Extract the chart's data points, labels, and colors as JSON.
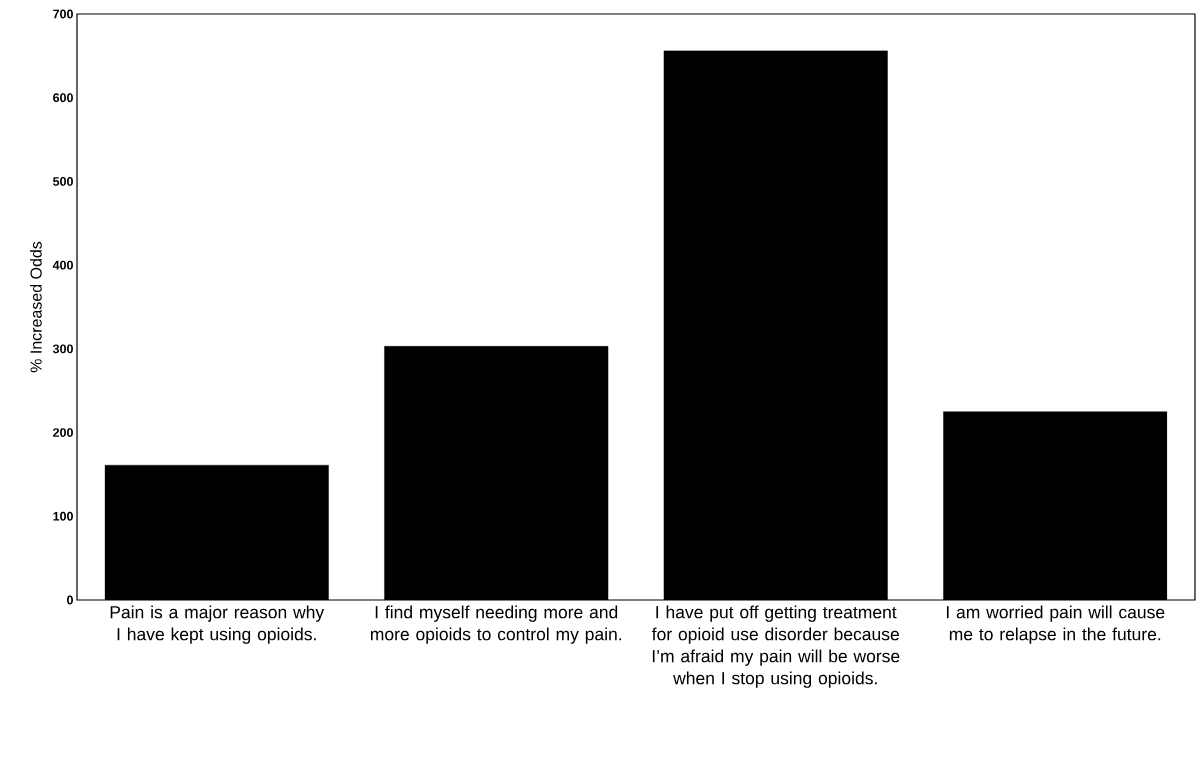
{
  "chart_data": {
    "type": "bar",
    "ylabel": "% Increased Odds",
    "categories": [
      "Pain is a major reason why I have kept using opioids.",
      "I find myself needing more and more opioids to control my pain.",
      "I have put off getting treatment for opioid use disorder because I’m afraid my pain will be worse when I stop using opioids.",
      "I am worried pain will cause me to relapse in the future."
    ],
    "values": [
      161,
      303,
      656,
      225
    ],
    "color": "#000000",
    "ylim": [
      0,
      700
    ],
    "yticks": [
      0,
      100,
      200,
      300,
      400,
      500,
      600,
      700
    ]
  }
}
